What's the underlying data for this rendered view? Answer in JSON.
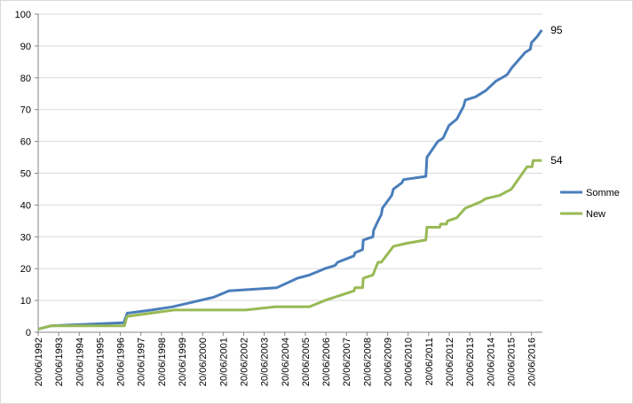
{
  "chart_data": {
    "type": "line",
    "title": "",
    "xlabel": "",
    "ylabel": "",
    "ylim": [
      0,
      100
    ],
    "ytick_values": [
      0,
      10,
      20,
      30,
      40,
      50,
      60,
      70,
      80,
      90,
      100
    ],
    "ytick_labels": [
      "0",
      "10",
      "20",
      "30",
      "40",
      "50",
      "60",
      "70",
      "80",
      "90",
      "100"
    ],
    "xlim": [
      "1992-06-20",
      "2017-01-01"
    ],
    "xtick_values": [
      "1992-06-20",
      "1993-06-20",
      "1994-06-20",
      "1995-06-20",
      "1996-06-20",
      "1997-06-20",
      "1998-06-20",
      "1999-06-20",
      "2000-06-20",
      "2001-06-20",
      "2002-06-20",
      "2003-06-20",
      "2004-06-20",
      "2005-06-20",
      "2006-06-20",
      "2007-06-20",
      "2008-06-20",
      "2009-06-20",
      "2010-06-20",
      "2011-06-20",
      "2012-06-20",
      "2013-06-20",
      "2014-06-20",
      "2015-06-20",
      "2016-06-20"
    ],
    "xtick_labels": [
      "20/06/1992",
      "20/06/1993",
      "20/06/1994",
      "20/06/1995",
      "20/06/1996",
      "20/06/1997",
      "20/06/1998",
      "20/06/1999",
      "20/06/2000",
      "20/06/2001",
      "20/06/2002",
      "20/06/2003",
      "20/06/2004",
      "20/06/2005",
      "20/06/2006",
      "20/06/2007",
      "20/06/2008",
      "20/06/2009",
      "20/06/2010",
      "20/06/2011",
      "20/06/2012",
      "20/06/2013",
      "20/06/2014",
      "20/06/2015",
      "20/06/2016"
    ],
    "grid": "horizontal",
    "legend": "right",
    "series": [
      {
        "name": "Somme",
        "color": "#4a7ebb",
        "end_label": "95",
        "points": [
          [
            "1992-06-20",
            1
          ],
          [
            "1993-02-01",
            2
          ],
          [
            "1996-08-20",
            3
          ],
          [
            "1996-10-20",
            6
          ],
          [
            "1998-01-01",
            7
          ],
          [
            "1999-01-01",
            8
          ],
          [
            "2000-01-01",
            9.5
          ],
          [
            "2001-01-01",
            11
          ],
          [
            "2001-10-01",
            13
          ],
          [
            "2004-02-01",
            14
          ],
          [
            "2005-02-01",
            17
          ],
          [
            "2005-09-01",
            18
          ],
          [
            "2006-06-01",
            20
          ],
          [
            "2006-12-01",
            21
          ],
          [
            "2007-01-15",
            22
          ],
          [
            "2007-11-01",
            24
          ],
          [
            "2007-11-20",
            25
          ],
          [
            "2008-04-01",
            26
          ],
          [
            "2008-04-15",
            29
          ],
          [
            "2008-10-01",
            30
          ],
          [
            "2008-10-15",
            32
          ],
          [
            "2009-01-01",
            35
          ],
          [
            "2009-03-01",
            37
          ],
          [
            "2009-03-20",
            39
          ],
          [
            "2009-09-01",
            43
          ],
          [
            "2009-10-01",
            45
          ],
          [
            "2010-03-01",
            47
          ],
          [
            "2010-04-01",
            48
          ],
          [
            "2011-05-01",
            49
          ],
          [
            "2011-05-20",
            55
          ],
          [
            "2011-12-01",
            60
          ],
          [
            "2012-03-01",
            61
          ],
          [
            "2012-06-15",
            65
          ],
          [
            "2012-11-01",
            67
          ],
          [
            "2013-03-01",
            71
          ],
          [
            "2013-04-01",
            73
          ],
          [
            "2013-10-01",
            74
          ],
          [
            "2014-04-01",
            76
          ],
          [
            "2014-10-01",
            79
          ],
          [
            "2015-03-01",
            80.5
          ],
          [
            "2015-04-15",
            81
          ],
          [
            "2015-07-01",
            83
          ],
          [
            "2016-03-01",
            88
          ],
          [
            "2016-06-01",
            89
          ],
          [
            "2016-06-20",
            91
          ],
          [
            "2016-10-01",
            93
          ],
          [
            "2016-12-20",
            95
          ]
        ]
      },
      {
        "name": "New",
        "color": "#98b954",
        "end_label": "54",
        "points": [
          [
            "1992-06-20",
            1
          ],
          [
            "1993-02-01",
            2
          ],
          [
            "1996-09-01",
            2
          ],
          [
            "1996-10-15",
            5
          ],
          [
            "1999-02-01",
            7
          ],
          [
            "2002-08-01",
            7
          ],
          [
            "2004-01-01",
            8
          ],
          [
            "2005-09-01",
            8
          ],
          [
            "2006-06-01",
            10
          ],
          [
            "2007-11-01",
            13
          ],
          [
            "2007-11-20",
            14
          ],
          [
            "2008-04-01",
            14
          ],
          [
            "2008-04-15",
            17
          ],
          [
            "2008-10-01",
            18
          ],
          [
            "2009-01-01",
            22
          ],
          [
            "2009-03-01",
            22
          ],
          [
            "2009-10-01",
            27
          ],
          [
            "2010-06-01",
            28
          ],
          [
            "2011-05-01",
            29
          ],
          [
            "2011-05-20",
            33
          ],
          [
            "2012-01-01",
            33
          ],
          [
            "2012-01-20",
            34
          ],
          [
            "2012-05-01",
            34
          ],
          [
            "2012-05-20",
            35
          ],
          [
            "2012-11-01",
            36
          ],
          [
            "2013-04-01",
            39
          ],
          [
            "2014-01-01",
            41
          ],
          [
            "2014-04-01",
            42
          ],
          [
            "2014-12-01",
            43
          ],
          [
            "2015-07-01",
            45
          ],
          [
            "2016-04-01",
            52
          ],
          [
            "2016-07-01",
            52
          ],
          [
            "2016-07-20",
            54
          ],
          [
            "2016-12-20",
            54
          ]
        ]
      }
    ]
  }
}
